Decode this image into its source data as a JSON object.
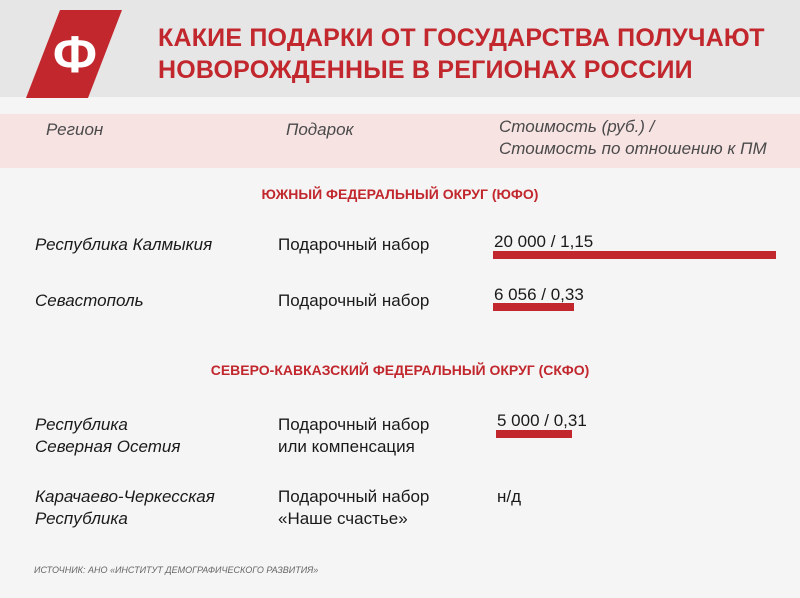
{
  "header": {
    "title": "КАКИЕ ПОДАРКИ ОТ ГОСУДАРСТВА ПОЛУЧАЮТ\nНОВОРОЖДЕННЫЕ В РЕГИОНАХ РОССИИ",
    "logo_letter": "Ф"
  },
  "columns": {
    "region": "Регион",
    "gift": "Подарок",
    "cost": "Стоимость (руб.) /\nСтоимость по отношению к ПМ"
  },
  "chart_data": {
    "type": "table",
    "title": "КАКИЕ ПОДАРКИ ОТ ГОСУДАРСТВА ПОЛУЧАЮТ НОВОРОЖДЕННЫЕ В РЕГИОНАХ РОССИИ",
    "sections": [
      {
        "name": "ЮЖНЫЙ ФЕДЕРАЛЬНЫЙ ОКРУГ (ЮФО)",
        "rows": [
          {
            "region": "Республика Калмыкия",
            "gift": "Подарочный набор",
            "value_label": "20 000 / 1,15",
            "ratio": 1.15
          },
          {
            "region": "Севастополь",
            "gift": "Подарочный набор",
            "value_label": "6 056 / 0,33",
            "ratio": 0.33
          }
        ]
      },
      {
        "name": "СЕВЕРО-КАВКАЗСКИЙ ФЕДЕРАЛЬНЫЙ ОКРУГ (СКФО)",
        "rows": [
          {
            "region": "Республика\nСеверная Осетия",
            "gift": "Подарочный набор\nили компенсация",
            "value_label": "5 000 / 0,31",
            "ratio": 0.31
          },
          {
            "region": "Карачаево-Черкесская\nРеспублика",
            "gift": "Подарочный набор\n«Наше счастье»",
            "value_label": "н/д",
            "ratio": null
          }
        ]
      }
    ]
  },
  "colors": {
    "accent": "#c1272d",
    "header_bg": "#e6e6e6",
    "band_bg": "#f8e3e3"
  },
  "footer": {
    "source": "ИСТОЧНИК: АНО «ИНСТИТУТ ДЕМОГРАФИЧЕСКОГО РАЗВИТИЯ»"
  }
}
